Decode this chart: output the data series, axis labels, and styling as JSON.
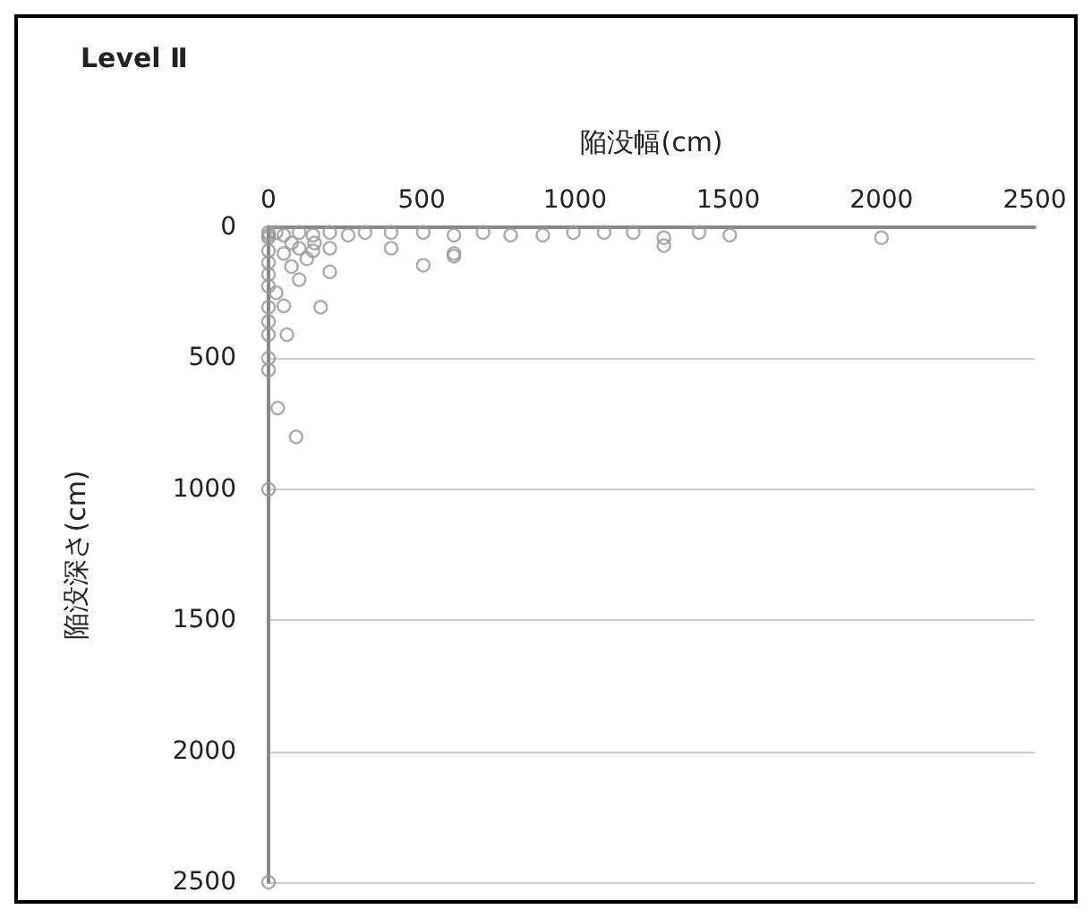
{
  "chart_data": {
    "type": "scatter",
    "title": "Level Ⅱ",
    "xlabel": "陥没幅(cm)",
    "ylabel": "陥没深さ(cm)",
    "xlim": [
      0,
      2500
    ],
    "xticks": [
      0,
      500,
      1000,
      1500,
      2000,
      2500
    ],
    "ylim": [
      2500,
      0
    ],
    "yticks": [
      0,
      500,
      1000,
      1500,
      2000,
      2500
    ],
    "grid": "y",
    "marker": "circle",
    "series": [
      {
        "color": "#999999",
        "x": [
          0,
          25,
          50,
          100,
          145,
          200,
          260,
          315,
          400,
          505,
          605,
          700,
          790,
          895,
          995,
          1095,
          1190,
          1290,
          1405,
          1505,
          2000,
          100,
          145,
          200,
          400,
          605,
          1290,
          505,
          605,
          200,
          170,
          0,
          0,
          0,
          0,
          0,
          0,
          0,
          0,
          0,
          0,
          0,
          30,
          90,
          60,
          0,
          0,
          50,
          75,
          100,
          25,
          50,
          125,
          150,
          75
        ],
        "values": [
          20,
          20,
          30,
          20,
          30,
          20,
          30,
          20,
          20,
          20,
          30,
          20,
          30,
          30,
          20,
          20,
          20,
          40,
          20,
          30,
          40,
          80,
          90,
          80,
          80,
          100,
          70,
          145,
          110,
          170,
          305,
          40,
          90,
          135,
          180,
          225,
          305,
          360,
          500,
          545,
          1000,
          2500,
          690,
          800,
          410,
          410,
          30,
          100,
          150,
          200,
          250,
          300,
          120,
          60,
          60
        ]
      }
    ]
  }
}
